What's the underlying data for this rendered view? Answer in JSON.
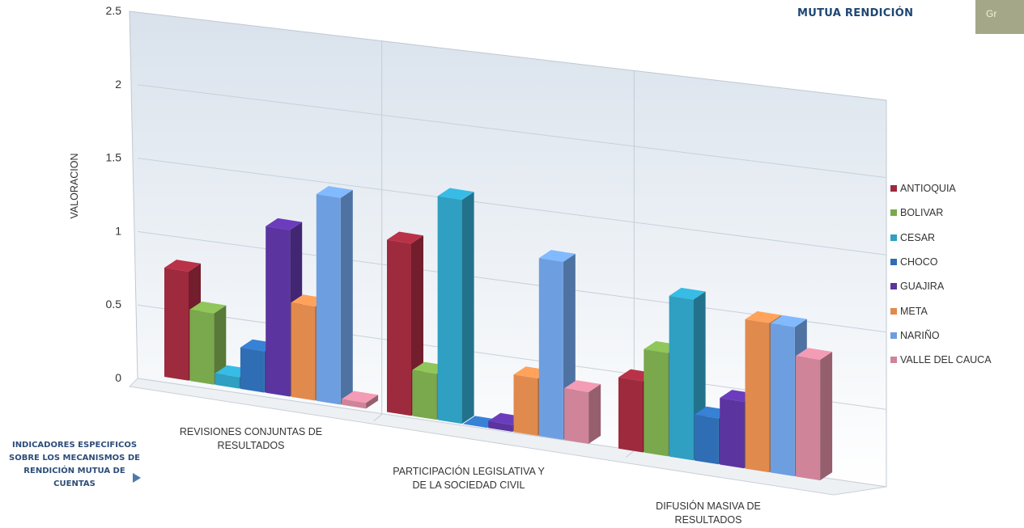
{
  "header": {
    "section_title": "MUTUA RENDICIÓN",
    "tab_text": "Gr"
  },
  "side_note": {
    "text": "INDICADORES ESPECIFICOS SOBRE LOS MECANISMOS DE RENDICIÓN MUTUA DE CUENTAS"
  },
  "chart_data": {
    "type": "bar",
    "title": "",
    "xlabel": "",
    "ylabel": "VALORACION",
    "ylim": [
      0,
      2.5
    ],
    "yticks": [
      "0",
      "0.5",
      "1",
      "1.5",
      "2",
      "2.5"
    ],
    "categories": [
      "REVISIONES CONJUNTAS DE RESULTADOS",
      "PARTICIPACIÓN LEGISLATIVA Y DE LA SOCIEDAD CIVIL",
      "DIFUSIÓN MASIVA DE RESULTADOS"
    ],
    "legend_position": "right",
    "grid": true,
    "series": [
      {
        "name": "ANTIOQUIA",
        "color": "#9e2a3d",
        "values": [
          0.95,
          1.5,
          0.62
        ]
      },
      {
        "name": "BOLIVAR",
        "color": "#7aa84c",
        "values": [
          0.62,
          0.4,
          0.9
        ]
      },
      {
        "name": "CESAR",
        "color": "#2f9fc2",
        "values": [
          0.1,
          1.95,
          1.4
        ]
      },
      {
        "name": "CHOCO",
        "color": "#2f6db5",
        "values": [
          0.36,
          0.0,
          0.4
        ]
      },
      {
        "name": "GUAJIRA",
        "color": "#5b34a0",
        "values": [
          1.45,
          0.06,
          0.58
        ]
      },
      {
        "name": "META",
        "color": "#e08a4e",
        "values": [
          0.82,
          0.5,
          1.3
        ]
      },
      {
        "name": "NARIÑO",
        "color": "#6d9ee0",
        "values": [
          1.8,
          1.55,
          1.3
        ]
      },
      {
        "name": "VALLE DEL CAUCA",
        "color": "#cf8499",
        "values": [
          0.05,
          0.45,
          1.05
        ]
      }
    ]
  }
}
